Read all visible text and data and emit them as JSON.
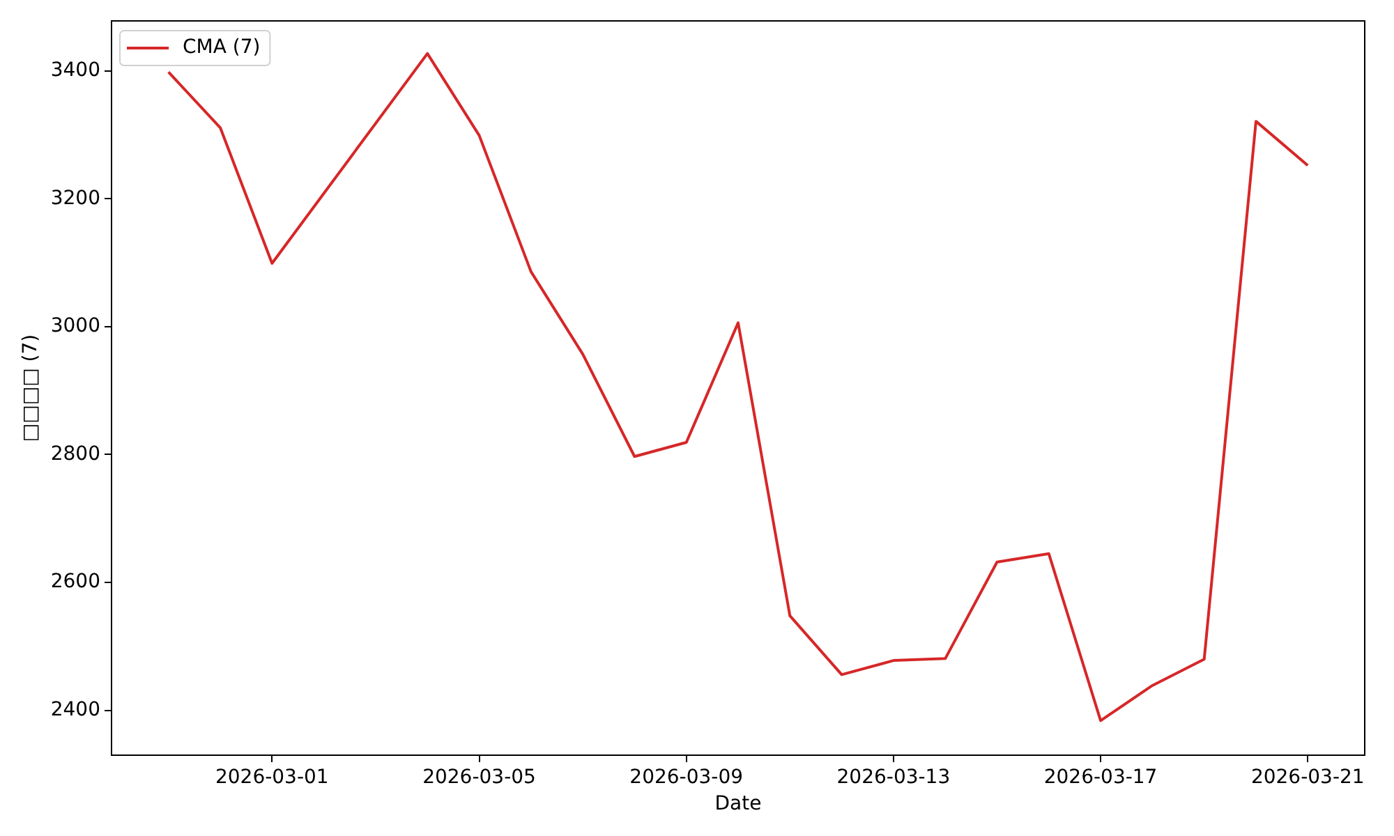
{
  "chart_data": {
    "type": "line",
    "xlabel": "Date",
    "ylabel": "□□□□ (7)",
    "legend": "top left",
    "x": [
      "2026-02-27",
      "2026-02-28",
      "2026-03-01",
      "2026-03-04",
      "2026-03-05",
      "2026-03-06",
      "2026-03-07",
      "2026-03-08",
      "2026-03-09",
      "2026-03-10",
      "2026-03-11",
      "2026-03-12",
      "2026-03-13",
      "2026-03-14",
      "2026-03-15",
      "2026-03-16",
      "2026-03-17",
      "2026-03-18",
      "2026-03-19",
      "2026-03-20",
      "2026-03-21"
    ],
    "series": [
      {
        "name": "CMA (7)",
        "color": "#d62728",
        "values": [
          3398,
          3311,
          3099,
          3427,
          3299,
          3086,
          2957,
          2797,
          2819,
          3006,
          2548,
          2456,
          2478,
          2481,
          2632,
          2645,
          2384,
          2439,
          2480,
          3321,
          3252
        ]
      }
    ],
    "xlim": [
      "2026-02-25T21:36",
      "2026-03-22T02:24"
    ],
    "xticks": [
      "2026-03-01",
      "2026-03-05",
      "2026-03-09",
      "2026-03-13",
      "2026-03-17",
      "2026-03-21"
    ],
    "ylim": [
      2330,
      3478
    ],
    "yticks": [
      2400,
      2600,
      2800,
      3000,
      3200,
      3400
    ]
  }
}
